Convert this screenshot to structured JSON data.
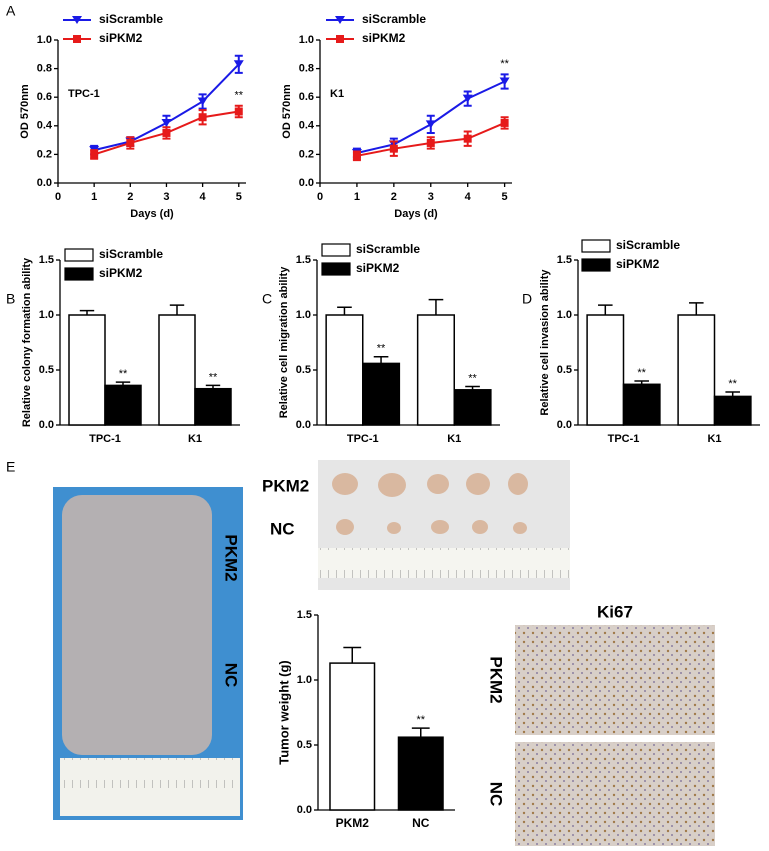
{
  "panels": [
    "A",
    "B",
    "C",
    "D",
    "E"
  ],
  "photos": {
    "mice_labels": [
      "PKM2",
      "NC"
    ],
    "tumor_labels": [
      "PKM2",
      "NC"
    ],
    "ki67_title": "Ki67",
    "ki67_labels": [
      "PKM2",
      "NC"
    ]
  },
  "chart_data": [
    {
      "type": "line",
      "label": "TPC-1",
      "x_label": "Days (d)",
      "y_label": "OD 570nm",
      "x": [
        1,
        2,
        3,
        4,
        5
      ],
      "xlim": [
        0,
        5.2
      ],
      "xticks": [
        0,
        1,
        2,
        3,
        4,
        5
      ],
      "ylim": [
        0,
        1.0
      ],
      "yticks": [
        {
          "value": 0,
          "label": "0.0"
        },
        0.2,
        0.4,
        0.6,
        0.8,
        {
          "value": 1,
          "label": "1.0"
        }
      ],
      "series": [
        {
          "name": "siScramble",
          "color": "#1a1ae6",
          "marker": "triangle",
          "values": [
            0.23,
            0.29,
            0.42,
            0.57,
            0.83
          ],
          "errors": [
            0.03,
            0.03,
            0.05,
            0.05,
            0.06
          ]
        },
        {
          "name": "siPKM2",
          "color": "#e61a1a",
          "marker": "square",
          "values": [
            0.2,
            0.28,
            0.35,
            0.46,
            0.5
          ],
          "errors": [
            0.03,
            0.04,
            0.04,
            0.05,
            0.04
          ],
          "value_annotations": [
            null,
            null,
            null,
            null,
            "**"
          ]
        }
      ]
    },
    {
      "type": "line",
      "label": "K1",
      "x_label": "Days (d)",
      "y_label": "OD 570nm",
      "x": [
        1,
        2,
        3,
        4,
        5
      ],
      "xlim": [
        0,
        5.2
      ],
      "xticks": [
        0,
        1,
        2,
        3,
        4,
        5
      ],
      "ylim": [
        0,
        1.0
      ],
      "yticks": [
        {
          "value": 0,
          "label": "0.0"
        },
        0.2,
        0.4,
        0.6,
        0.8,
        {
          "value": 1,
          "label": "1.0"
        }
      ],
      "series": [
        {
          "name": "siScramble",
          "color": "#1a1ae6",
          "marker": "triangle",
          "values": [
            0.21,
            0.27,
            0.41,
            0.59,
            0.71
          ],
          "errors": [
            0.03,
            0.04,
            0.06,
            0.05,
            0.05
          ],
          "value_annotations": [
            null,
            null,
            null,
            null,
            "**"
          ]
        },
        {
          "name": "siPKM2",
          "color": "#e61a1a",
          "marker": "square",
          "values": [
            0.19,
            0.24,
            0.28,
            0.31,
            0.42
          ],
          "errors": [
            0.03,
            0.05,
            0.04,
            0.05,
            0.04
          ]
        }
      ]
    },
    {
      "type": "bar",
      "y_label": "Relative colony formation ability",
      "categories": [
        "TPC-1",
        "K1"
      ],
      "ylim": [
        0,
        1.5
      ],
      "yticks": [
        {
          "value": 0,
          "label": "0.0"
        },
        0.5,
        {
          "value": 1,
          "label": "1.0"
        },
        {
          "value": 1.5,
          "label": "1.5"
        }
      ],
      "series": [
        {
          "name": "siScramble",
          "color": "#ffffff",
          "values": [
            1,
            1
          ],
          "errors": [
            0.04,
            0.09
          ]
        },
        {
          "name": "siPKM2",
          "color": "#000000",
          "values": [
            0.36,
            0.33
          ],
          "errors": [
            0.03,
            0.03
          ],
          "value_annotations": [
            "**",
            "**"
          ]
        }
      ]
    },
    {
      "type": "bar",
      "y_label": "Relative cell migration ability",
      "categories": [
        "TPC-1",
        "K1"
      ],
      "ylim": [
        0,
        1.5
      ],
      "yticks": [
        {
          "value": 0,
          "label": "0.0"
        },
        0.5,
        {
          "value": 1,
          "label": "1.0"
        },
        {
          "value": 1.5,
          "label": "1.5"
        }
      ],
      "series": [
        {
          "name": "siScramble",
          "color": "#ffffff",
          "values": [
            1,
            1
          ],
          "errors": [
            0.07,
            0.14
          ]
        },
        {
          "name": "siPKM2",
          "color": "#000000",
          "values": [
            0.56,
            0.32
          ],
          "errors": [
            0.06,
            0.03
          ],
          "value_annotations": [
            "**",
            "**"
          ]
        }
      ]
    },
    {
      "type": "bar",
      "y_label": "Relative cell invasion ability",
      "categories": [
        "TPC-1",
        "K1"
      ],
      "ylim": [
        0,
        1.5
      ],
      "yticks": [
        {
          "value": 0,
          "label": "0.0"
        },
        0.5,
        {
          "value": 1,
          "label": "1.0"
        },
        {
          "value": 1.5,
          "label": "1.5"
        }
      ],
      "series": [
        {
          "name": "siScramble",
          "color": "#ffffff",
          "values": [
            1,
            1
          ],
          "errors": [
            0.09,
            0.11
          ]
        },
        {
          "name": "siPKM2",
          "color": "#000000",
          "values": [
            0.37,
            0.26
          ],
          "errors": [
            0.03,
            0.04
          ],
          "value_annotations": [
            "**",
            "**"
          ]
        }
      ]
    },
    {
      "type": "bar",
      "y_label": "Tumor weight (g)",
      "categories": [
        "PKM2",
        "NC"
      ],
      "ylim": [
        0,
        1.5
      ],
      "yticks": [
        {
          "value": 0,
          "label": "0.0"
        },
        0.5,
        {
          "value": 1,
          "label": "1.0"
        },
        {
          "value": 1.5,
          "label": "1.5"
        }
      ],
      "series": [
        {
          "colors": [
            "#ffffff",
            "#000000"
          ],
          "values": [
            1.13,
            0.56
          ],
          "errors": [
            0.12,
            0.07
          ],
          "value_annotations": [
            null,
            "**"
          ]
        }
      ]
    }
  ]
}
